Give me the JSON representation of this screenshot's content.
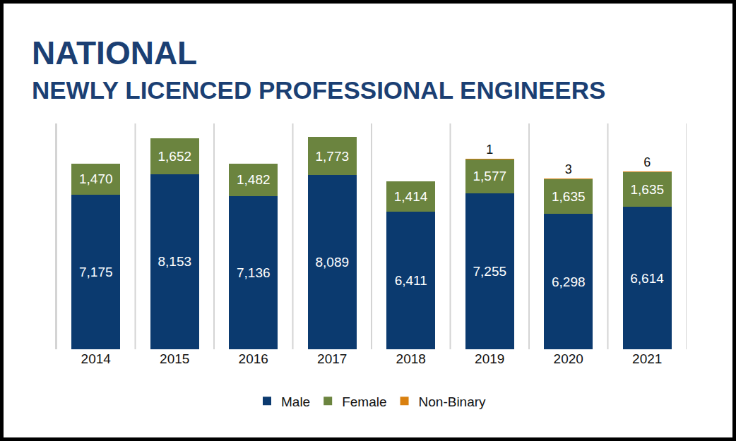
{
  "chart_data": {
    "type": "bar",
    "title": "NATIONAL",
    "subtitle": "NEWLY LICENCED PROFESSIONAL ENGINEERS",
    "categories": [
      "2014",
      "2015",
      "2016",
      "2017",
      "2018",
      "2019",
      "2020",
      "2021"
    ],
    "stacked": true,
    "data_labels": true,
    "tick_labels": "x",
    "grid": false,
    "legend": "bottom",
    "ylim": [
      0,
      10500
    ],
    "yticks": [],
    "series": [
      {
        "name": "Male",
        "color": "#0b3a6f",
        "values": [
          7175,
          8153,
          7136,
          8089,
          6411,
          7255,
          6298,
          6614
        ],
        "value_labels": [
          "7,175",
          "8,153",
          "7,136",
          "8,089",
          "6,411",
          "7,255",
          "6,298",
          "6,614"
        ]
      },
      {
        "name": "Female",
        "color": "#6b843f",
        "values": [
          1470,
          1652,
          1482,
          1773,
          1414,
          1577,
          1635,
          1635
        ],
        "value_labels": [
          "1,470",
          "1,652",
          "1,482",
          "1,773",
          "1,414",
          "1,577",
          "1,635",
          "1,635"
        ]
      },
      {
        "name": "Non-Binary",
        "color": "#d9800f",
        "values": [
          null,
          null,
          null,
          null,
          null,
          1,
          3,
          6
        ]
      }
    ]
  }
}
